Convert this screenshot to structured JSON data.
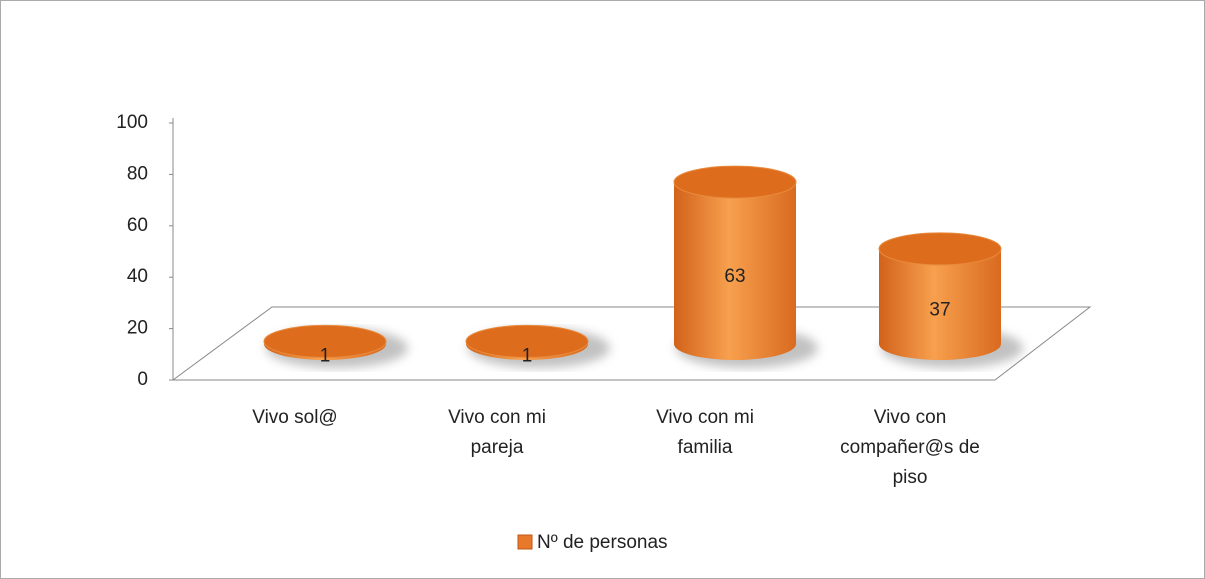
{
  "chart_data": {
    "type": "bar3d",
    "categories": [
      "Vivo sol@",
      "Vivo con mi pareja",
      "Vivo con mi familia",
      "Vivo con compañer@s de piso"
    ],
    "series": [
      {
        "name": "Nº de personas",
        "color": "#e8782a",
        "values": [
          1,
          1,
          63,
          37
        ]
      }
    ],
    "ylim": [
      0,
      100
    ],
    "yticks": [
      0,
      20,
      40,
      60,
      80,
      100
    ],
    "legend": "bottom"
  }
}
